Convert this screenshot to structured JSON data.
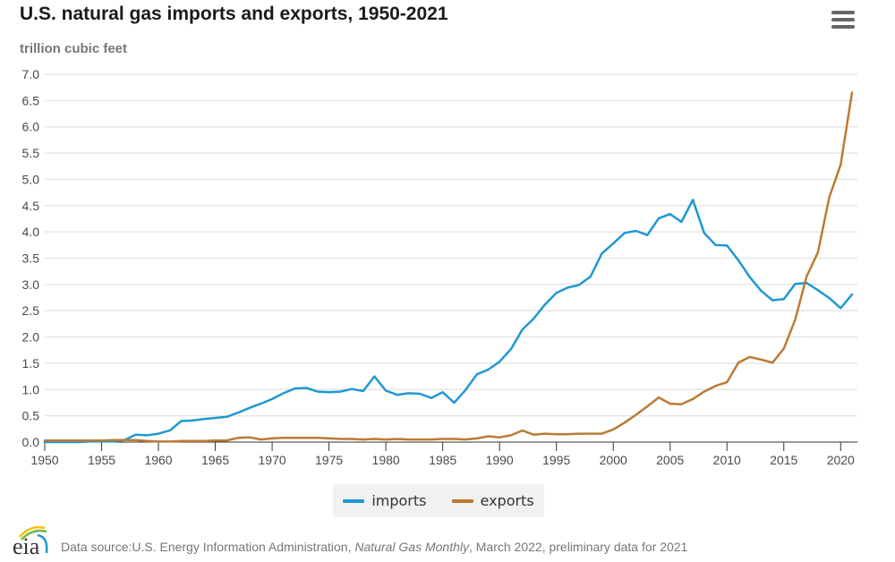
{
  "header": {
    "title": "U.S. natural gas imports and exports, 1950-2021",
    "unit_label": "trillion cubic feet",
    "menu_icon": "hamburger-menu-icon"
  },
  "footer": {
    "logo_text": "eia",
    "source_prefix": "Data source:U.S. Energy Information Administration, ",
    "source_italic": "Natural Gas Monthly",
    "source_suffix": ", March 2022, preliminary data for 2021"
  },
  "colors": {
    "imports": "#1f98d2",
    "exports": "#bd7a33",
    "grid": "#e6e6e6",
    "axis": "#333333"
  },
  "chart_data": {
    "type": "line",
    "title": "U.S. natural gas imports and exports, 1950-2021",
    "xlabel": "",
    "ylabel": "trillion cubic feet",
    "xlim": [
      1950,
      2021
    ],
    "ylim": [
      0,
      7.0
    ],
    "grid": true,
    "legend_position": "bottom-center",
    "x_ticks": [
      1950,
      1955,
      1960,
      1965,
      1970,
      1975,
      1980,
      1985,
      1990,
      1995,
      2000,
      2005,
      2010,
      2015,
      2020
    ],
    "y_ticks": [
      "0.0",
      "0.5",
      "1.0",
      "1.5",
      "2.0",
      "2.5",
      "3.0",
      "3.5",
      "4.0",
      "4.5",
      "5.0",
      "5.5",
      "6.0",
      "6.5",
      "7.0"
    ],
    "x": [
      1950,
      1951,
      1952,
      1953,
      1954,
      1955,
      1956,
      1957,
      1958,
      1959,
      1960,
      1961,
      1962,
      1963,
      1964,
      1965,
      1966,
      1967,
      1968,
      1969,
      1970,
      1971,
      1972,
      1973,
      1974,
      1975,
      1976,
      1977,
      1978,
      1979,
      1980,
      1981,
      1982,
      1983,
      1984,
      1985,
      1986,
      1987,
      1988,
      1989,
      1990,
      1991,
      1992,
      1993,
      1994,
      1995,
      1996,
      1997,
      1998,
      1999,
      2000,
      2001,
      2002,
      2003,
      2004,
      2005,
      2006,
      2007,
      2008,
      2009,
      2010,
      2011,
      2012,
      2013,
      2014,
      2015,
      2016,
      2017,
      2018,
      2019,
      2020,
      2021
    ],
    "series": [
      {
        "name": "imports",
        "values": [
          0.0,
          0.0,
          0.0,
          0.0,
          0.01,
          0.01,
          0.01,
          0.04,
          0.14,
          0.13,
          0.16,
          0.22,
          0.4,
          0.41,
          0.44,
          0.46,
          0.48,
          0.56,
          0.65,
          0.73,
          0.82,
          0.93,
          1.02,
          1.03,
          0.96,
          0.95,
          0.96,
          1.01,
          0.97,
          1.25,
          0.98,
          0.9,
          0.93,
          0.92,
          0.84,
          0.95,
          0.75,
          0.99,
          1.29,
          1.38,
          1.53,
          1.77,
          2.14,
          2.35,
          2.62,
          2.84,
          2.94,
          2.99,
          3.15,
          3.59,
          3.78,
          3.98,
          4.02,
          3.94,
          4.26,
          4.34,
          4.19,
          4.61,
          3.98,
          3.75,
          3.74,
          3.46,
          3.14,
          2.88,
          2.7,
          2.72,
          3.01,
          3.03,
          2.89,
          2.74,
          2.55,
          2.81
        ]
      },
      {
        "name": "exports",
        "values": [
          0.03,
          0.03,
          0.03,
          0.03,
          0.03,
          0.03,
          0.04,
          0.04,
          0.04,
          0.02,
          0.01,
          0.01,
          0.02,
          0.02,
          0.02,
          0.03,
          0.03,
          0.08,
          0.09,
          0.05,
          0.07,
          0.08,
          0.08,
          0.08,
          0.08,
          0.07,
          0.06,
          0.06,
          0.05,
          0.06,
          0.05,
          0.06,
          0.05,
          0.05,
          0.05,
          0.06,
          0.06,
          0.05,
          0.07,
          0.11,
          0.09,
          0.13,
          0.22,
          0.14,
          0.16,
          0.15,
          0.15,
          0.16,
          0.16,
          0.16,
          0.24,
          0.37,
          0.52,
          0.68,
          0.85,
          0.73,
          0.72,
          0.82,
          0.96,
          1.07,
          1.14,
          1.51,
          1.62,
          1.57,
          1.51,
          1.78,
          2.33,
          3.15,
          3.61,
          4.66,
          5.28,
          6.65
        ]
      }
    ]
  }
}
